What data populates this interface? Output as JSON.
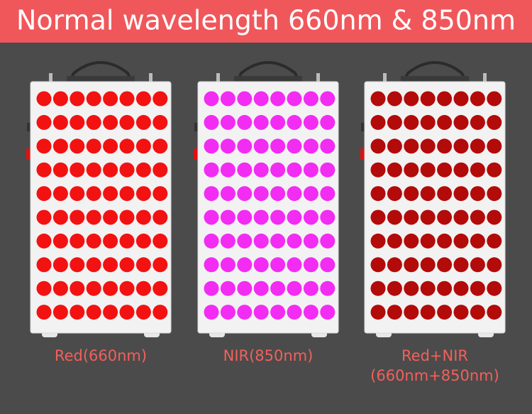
{
  "header": {
    "title": "Normal wavelength 660nm & 850nm"
  },
  "panels": [
    {
      "led_color": "#f21212",
      "caption": [
        "Red(660nm)"
      ]
    },
    {
      "led_color": "#f22cf2",
      "caption": [
        "NIR(850nm)"
      ]
    },
    {
      "led_color": "#b30a0a",
      "caption": [
        "Red+NIR",
        "(660nm+850nm)"
      ]
    }
  ]
}
